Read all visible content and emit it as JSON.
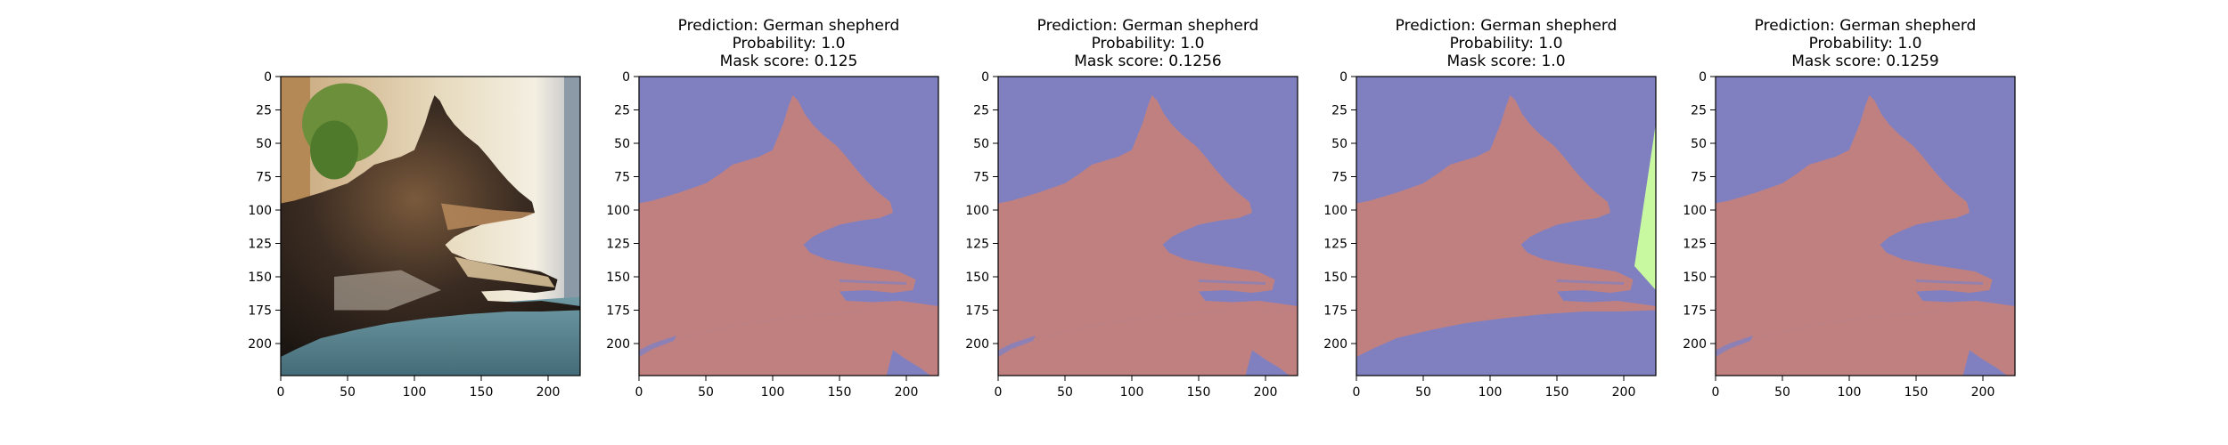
{
  "chart_data": [
    {
      "type": "image",
      "content": "photo of a German shepherd dog lying on a blue-gray blanket",
      "x_ticks": [
        0,
        50,
        100,
        150,
        200
      ],
      "y_ticks": [
        0,
        25,
        50,
        75,
        100,
        125,
        150,
        175,
        200
      ],
      "xlim": [
        0,
        224
      ],
      "ylim": [
        224,
        0
      ]
    },
    {
      "type": "segmentation-mask",
      "title_lines": [
        "Prediction: German shepherd",
        "Probability: 1.0",
        "Mask score: 0.125"
      ],
      "prediction": "German shepherd",
      "probability": 1.0,
      "mask_score": 0.125,
      "x_ticks": [
        0,
        50,
        100,
        150,
        200
      ],
      "y_ticks": [
        0,
        25,
        50,
        75,
        100,
        125,
        150,
        175,
        200
      ],
      "xlim": [
        0,
        224
      ],
      "ylim": [
        224,
        0
      ]
    },
    {
      "type": "segmentation-mask",
      "title_lines": [
        "Prediction: German shepherd",
        "Probability: 1.0",
        "Mask score: 0.1256"
      ],
      "prediction": "German shepherd",
      "probability": 1.0,
      "mask_score": 0.1256,
      "x_ticks": [
        0,
        50,
        100,
        150,
        200
      ],
      "y_ticks": [
        0,
        25,
        50,
        75,
        100,
        125,
        150,
        175,
        200
      ],
      "xlim": [
        0,
        224
      ],
      "ylim": [
        224,
        0
      ]
    },
    {
      "type": "segmentation-mask",
      "title_lines": [
        "Prediction: German shepherd",
        "Probability: 1.0",
        "Mask score: 1.0"
      ],
      "prediction": "German shepherd",
      "probability": 1.0,
      "mask_score": 1.0,
      "x_ticks": [
        0,
        50,
        100,
        150,
        200
      ],
      "y_ticks": [
        0,
        25,
        50,
        75,
        100,
        125,
        150,
        175,
        200
      ],
      "xlim": [
        0,
        224
      ],
      "ylim": [
        224,
        0
      ]
    },
    {
      "type": "segmentation-mask",
      "title_lines": [
        "Prediction: German shepherd",
        "Probability: 1.0",
        "Mask score: 0.1259"
      ],
      "prediction": "German shepherd",
      "probability": 1.0,
      "mask_score": 0.1259,
      "x_ticks": [
        0,
        50,
        100,
        150,
        200
      ],
      "y_ticks": [
        0,
        25,
        50,
        75,
        100,
        125,
        150,
        175,
        200
      ],
      "xlim": [
        0,
        224
      ],
      "ylim": [
        224,
        0
      ]
    }
  ],
  "colors": {
    "background": "#8080c0",
    "dog": "#c08080",
    "extra": "#c8f8a0",
    "axis": "#000000"
  }
}
